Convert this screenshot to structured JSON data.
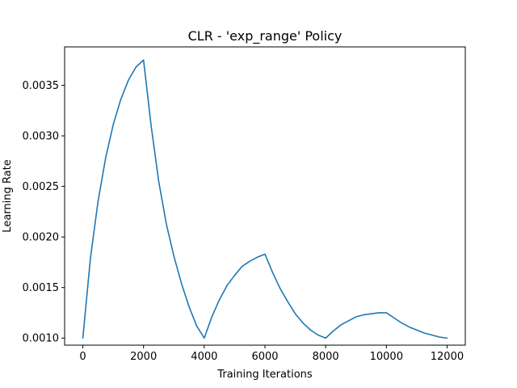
{
  "chart_data": {
    "type": "line",
    "title": "CLR - 'exp_range' Policy",
    "xlabel": "Training Iterations",
    "ylabel": "Learning Rate",
    "xlim": [
      -600,
      12600
    ],
    "ylim": [
      0.00093,
      0.00388
    ],
    "grid": false,
    "xticks": [
      0,
      2000,
      4000,
      6000,
      8000,
      10000,
      12000
    ],
    "xtick_labels": [
      "0",
      "2000",
      "4000",
      "6000",
      "8000",
      "10000",
      "12000"
    ],
    "yticks": [
      0.001,
      0.0015,
      0.002,
      0.0025,
      0.003,
      0.0035
    ],
    "ytick_labels": [
      "0.0010",
      "0.0015",
      "0.0020",
      "0.0025",
      "0.0030",
      "0.0035"
    ],
    "series": [
      {
        "color": "#1f77b4",
        "x": [
          0,
          250,
          500,
          750,
          1000,
          1250,
          1500,
          1750,
          2000,
          2250,
          2500,
          2750,
          3000,
          3250,
          3500,
          3750,
          4000,
          4250,
          4500,
          4750,
          5000,
          5250,
          5500,
          5750,
          6000,
          6250,
          6500,
          6750,
          7000,
          7250,
          7500,
          7750,
          8000,
          8250,
          8500,
          8750,
          9000,
          9250,
          9500,
          9750,
          10000,
          10250,
          10500,
          10750,
          11000,
          11250,
          11500,
          11750,
          12000
        ],
        "y": [
          0.001,
          0.00179,
          0.00235,
          0.00278,
          0.00311,
          0.00336,
          0.00355,
          0.00368,
          0.00375,
          0.0031,
          0.00255,
          0.00213,
          0.00181,
          0.00154,
          0.00131,
          0.00112,
          0.001,
          0.00121,
          0.00138,
          0.00152,
          0.00162,
          0.00171,
          0.00176,
          0.0018,
          0.00183,
          0.00165,
          0.00149,
          0.00136,
          0.00124,
          0.00115,
          0.00108,
          0.00103,
          0.001,
          0.00107,
          0.00113,
          0.00117,
          0.00121,
          0.00123,
          0.00124,
          0.00125,
          0.00125,
          0.0012,
          0.00115,
          0.00111,
          0.00108,
          0.00105,
          0.00103,
          0.00101,
          0.001
        ]
      }
    ]
  }
}
